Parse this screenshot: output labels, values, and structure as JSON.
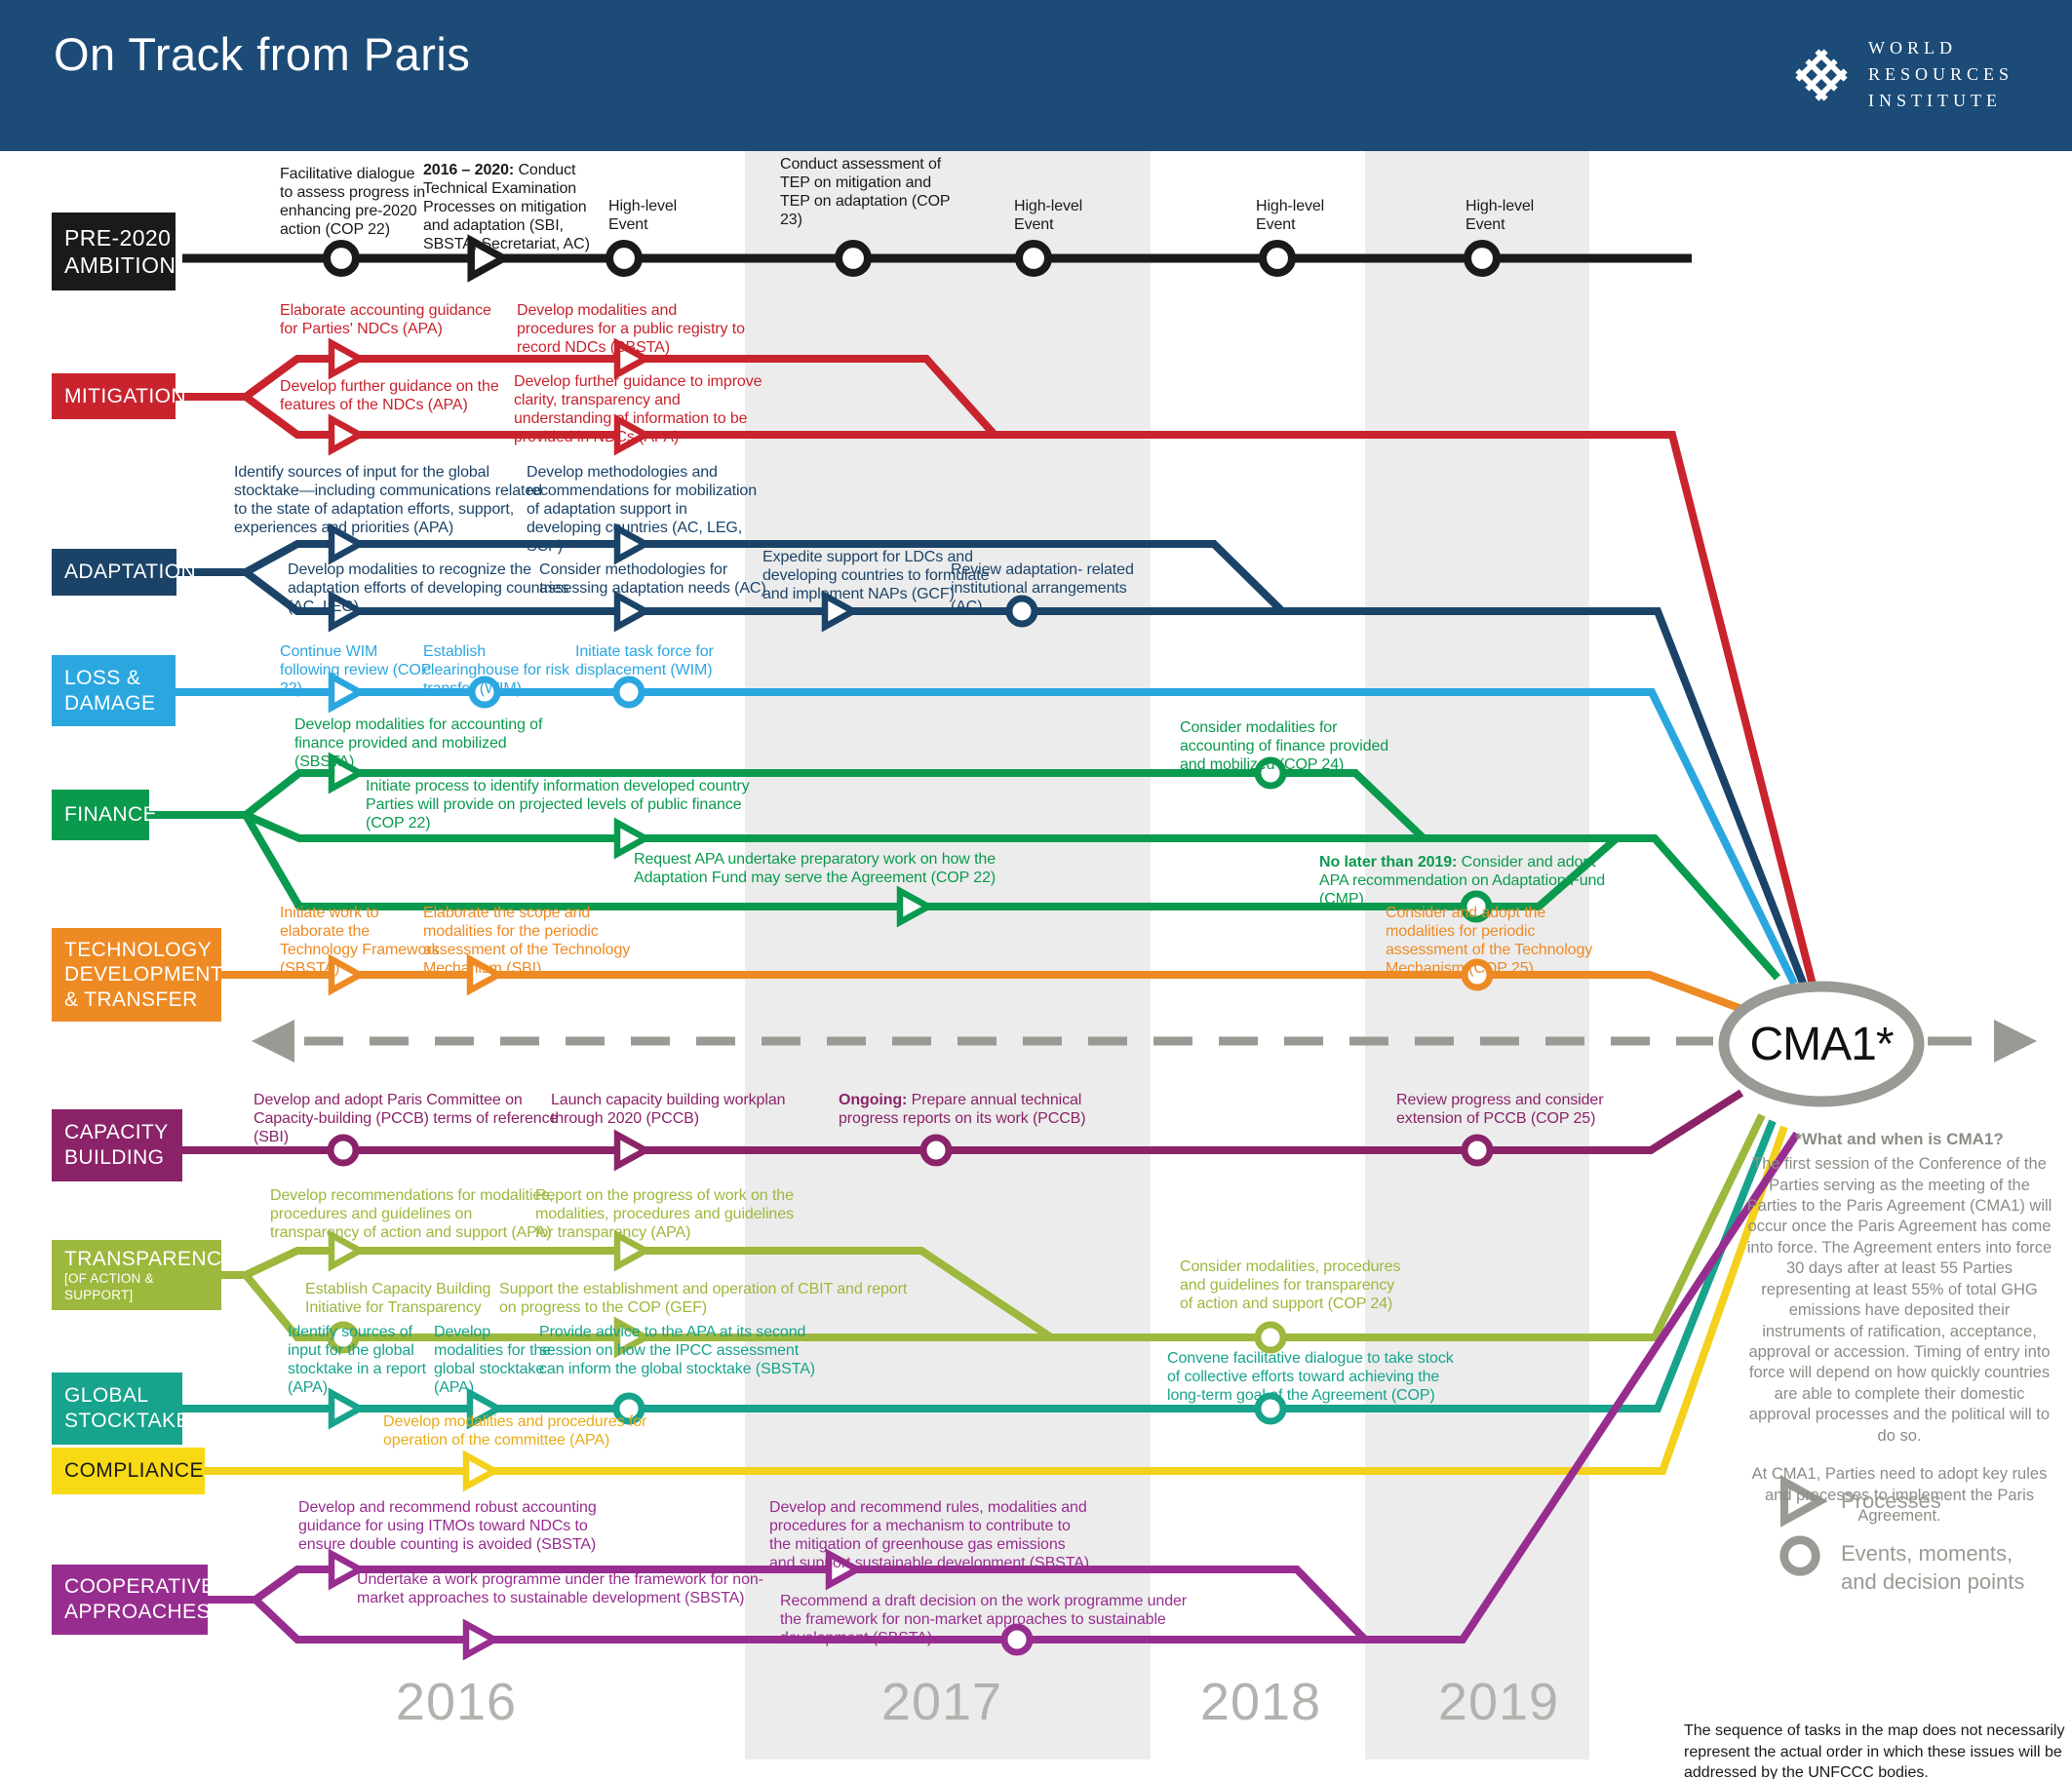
{
  "header": {
    "title": "On Track from Paris",
    "logo": [
      "WORLD",
      "RESOURCES",
      "INSTITUTE"
    ]
  },
  "colors": {
    "header_blue": "#1c4b77",
    "pre2020": "#1a1a1a",
    "mitigation": "#c9232d",
    "adaptation": "#1b4368",
    "loss_damage": "#2ba7e0",
    "finance": "#0a9a4e",
    "technology": "#ee8a24",
    "capacity": "#8b2368",
    "transparency": "#9cb83d",
    "stocktake": "#17a38c",
    "compliance": "#f3d11c",
    "cooperative": "#982d90",
    "timeline_gray": "#9a9a94",
    "band_gray": "#ececec"
  },
  "cma": {
    "label": "CMA1*",
    "heading": "*What and when is CMA1?",
    "body": "The first session of the Conference of the Parties serving as the meeting of the Parties to the Paris Agreement (CMA1) will occur once the Paris Agreement has come into force.  The Agreement enters into force 30 days after at least 55 Parties representing at least 55% of total GHG emissions have deposited their instruments of ratification, acceptance, approval or accession. Timing of entry into force will depend on how quickly countries are able to complete their domestic approval processes and the political will to do so.",
    "body2": "At CMA1, Parties need to adopt key rules and processes to implement the Paris Agreement."
  },
  "legend": {
    "processes": "Processes",
    "events": "Events, moments, and decision points"
  },
  "years": [
    "2016",
    "2017",
    "2018",
    "2019"
  ],
  "footnote": "The sequence of tasks in the map does not necessarily represent the actual order in which these issues will be addressed by the UNFCCC bodies.",
  "tracks": {
    "pre2020": {
      "label": [
        "PRE-2020",
        "AMBITION"
      ],
      "items": [
        "Facilitative dialogue to assess progress in enhancing pre-2020 action (COP 22)",
        {
          "b": "2016 – 2020:",
          "t": " Conduct Technical Examination Processes on mitigation and adaptation (SBI, SBSTA, Secretariat, AC)"
        },
        "High-level Event",
        "Conduct assessment of TEP on mitigation and TEP on adaptation (COP 23)",
        "High-level Event",
        "High-level Event",
        "High-level Event"
      ]
    },
    "mitigation": {
      "label": [
        "MITIGATION"
      ],
      "items": [
        "Elaborate accounting guidance for Parties' NDCs (APA)",
        "Develop modalities and procedures for a public registry to record NDCs (SBSTA)",
        "Develop further guidance on the features of the NDCs (APA)",
        "Develop further guidance to improve clarity, transparency and understanding of information to be provided in NDCs (APA)"
      ]
    },
    "adaptation": {
      "label": [
        "ADAPTATION"
      ],
      "items": [
        "Identify sources of input for the global stocktake—including  communications related to the state of adaptation efforts, support, experiences and priorities (APA)",
        "Develop methodologies and recommendations for mobilization of adaptation support in developing countries (AC, LEG, SCF)",
        "Develop modalities to recognize the adaptation efforts of developing countries (AC, LEG)",
        "Consider methodologies for assessing adaptation needs (AC)",
        "Expedite support for LDCs and developing countries to formulate and implement NAPs (GCF)",
        "Review adaptation- related institutional arrangements (AC)"
      ]
    },
    "loss_damage": {
      "label": [
        "LOSS &",
        "DAMAGE"
      ],
      "items": [
        "Continue WIM following review (COP 22)",
        "Establish clearinghouse for risk transfer (WIM)",
        "Initiate task force for displacement (WIM)"
      ]
    },
    "finance": {
      "label": [
        "FINANCE"
      ],
      "items": [
        "Develop modalities for accounting of finance provided and mobilized (SBSTA)",
        "Initiate process to identify information developed country Parties will provide on projected levels of public finance (COP 22)",
        "Request APA undertake preparatory work on how the Adaptation Fund may serve the Agreement (COP 22)",
        "Consider modalities for accounting of finance provided and mobilized (COP 24)",
        {
          "b": "No later than 2019:",
          "t": " Consider and adopt APA recommendation on Adaptation Fund (CMP)"
        }
      ]
    },
    "technology": {
      "label": [
        "TECHNOLOGY",
        "DEVELOPMENT",
        "& TRANSFER"
      ],
      "items": [
        "Initiate work to elaborate the Technology Framework (SBSTA)",
        "Elaborate the scope and modalities for the periodic assessment of the Technology Mechanism (SBI)",
        "Consider and adopt the modalities for periodic assessment of the Technology Mechanism (COP 25)"
      ]
    },
    "capacity": {
      "label": [
        "CAPACITY",
        "BUILDING"
      ],
      "items": [
        "Develop and adopt Paris Committee on Capacity-building (PCCB) terms of reference (SBI)",
        "Launch capacity building workplan through 2020 (PCCB)",
        {
          "b": "Ongoing:",
          "t": " Prepare annual technical progress reports on its work (PCCB)"
        },
        "Review progress and consider extension of PCCB (COP 25)"
      ]
    },
    "transparency": {
      "label": [
        "TRANSPARENCY",
        "[OF ACTION & SUPPORT]"
      ],
      "items": [
        "Develop recommendations for modalities, procedures and guidelines on transparency of action and support (APA)",
        "Report on the progress of work on the modalities, procedures and guidelines for transparency (APA)",
        "Establish Capacity Building Initiative for Transparency",
        "Support the establishment and operation of CBIT and report on progress to the COP (GEF)",
        "Consider modalities, procedures and guidelines for transparency of action and support (COP 24)"
      ]
    },
    "stocktake": {
      "label": [
        "GLOBAL",
        "STOCKTAKE"
      ],
      "items": [
        "Identify sources of input for the global stocktake in a report (APA)",
        "Develop modalities for the global stocktake (APA)",
        "Provide advice to the APA at its second session on how the IPCC assessment can inform the  global stocktake (SBSTA)",
        "Convene facilitative dialogue to take stock of collective efforts toward achieving the long-term goal of the Agreement (COP)"
      ]
    },
    "compliance": {
      "label": [
        "COMPLIANCE"
      ],
      "items": [
        "Develop modalities and procedures for operation of the committee (APA)"
      ]
    },
    "cooperative": {
      "label": [
        "COOPERATIVE",
        "APPROACHES"
      ],
      "items": [
        "Develop and recommend robust accounting guidance for using ITMOs toward NDCs to ensure double counting is avoided (SBSTA)",
        "Undertake a work programme under the framework for non-market approaches to sustainable development (SBSTA)",
        "Develop and recommend rules, modalities and procedures for a mechanism to contribute to the mitigation of greenhouse gas emissions and support sustainable development (SBSTA)",
        "Recommend a draft decision on the work programme under the framework for non-market approaches to sustainable development (SBSTA)"
      ]
    }
  }
}
